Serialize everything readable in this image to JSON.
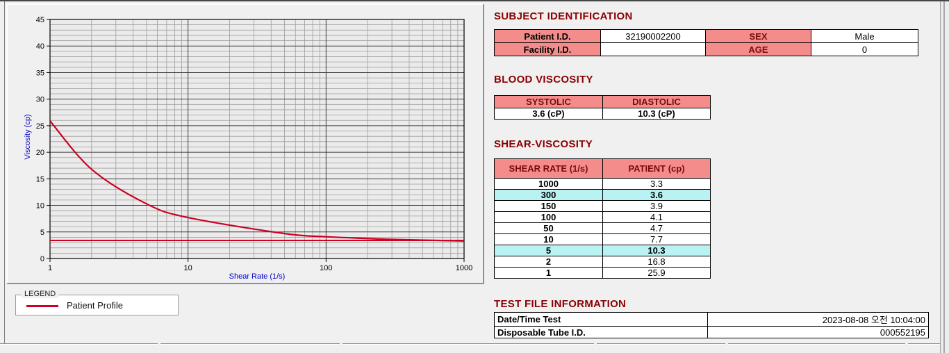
{
  "subject_identification": {
    "title": "SUBJECT IDENTIFICATION",
    "rows": [
      {
        "label1": "Patient I.D.",
        "value1": "32190002200",
        "label2": "SEX",
        "value2": "Male"
      },
      {
        "label1": "Facility I.D.",
        "value1": "",
        "label2": "AGE",
        "value2": "0"
      }
    ]
  },
  "blood_viscosity": {
    "title": "BLOOD VISCOSITY",
    "headers": [
      "SYSTOLIC",
      "DIASTOLIC"
    ],
    "values": [
      "3.6 (cP)",
      "10.3 (cP)"
    ]
  },
  "shear_viscosity": {
    "title": "SHEAR-VISCOSITY",
    "headers": [
      "SHEAR RATE (1/s)",
      "PATIENT (cp)"
    ],
    "rows": [
      {
        "rate": "1000",
        "value": "3.3",
        "highlight": false
      },
      {
        "rate": "300",
        "value": "3.6",
        "highlight": true
      },
      {
        "rate": "150",
        "value": "3.9",
        "highlight": false
      },
      {
        "rate": "100",
        "value": "4.1",
        "highlight": false
      },
      {
        "rate": "50",
        "value": "4.7",
        "highlight": false
      },
      {
        "rate": "10",
        "value": "7.7",
        "highlight": false
      },
      {
        "rate": "5",
        "value": "10.3",
        "highlight": true
      },
      {
        "rate": "2",
        "value": "16.8",
        "highlight": false
      },
      {
        "rate": "1",
        "value": "25.9",
        "highlight": false
      }
    ]
  },
  "test_file_information": {
    "title": "TEST FILE INFORMATION",
    "rows": [
      {
        "label": "Date/Time Test",
        "value": "2023-08-08  오전 10:04:00"
      },
      {
        "label": "Disposable Tube I.D.",
        "value": "000552195"
      }
    ]
  },
  "legend": {
    "box_label": "LEGEND",
    "series_label": "Patient Profile",
    "line_color": "#cc0022"
  },
  "colors": {
    "section_title": "#8b0000",
    "table_header_bg": "#f58c8c",
    "highlight_bg": "#b8f2f2",
    "curve": "#cc0022",
    "axis_title": "#0000cc",
    "grid_minor": "#9d9d9d",
    "grid_major": "#3c3c3c"
  },
  "chart_data": {
    "type": "line",
    "x_scale": "log",
    "x": [
      1,
      2,
      5,
      10,
      50,
      100,
      150,
      300,
      1000
    ],
    "series": [
      {
        "name": "Patient Profile",
        "values": [
          25.9,
          16.8,
          10.3,
          7.7,
          4.7,
          4.1,
          3.9,
          3.6,
          3.3
        ]
      }
    ],
    "baseline_value": 3.4,
    "title": "",
    "xlabel": "Shear Rate (1/s)",
    "ylabel": "Viscosity (cp)",
    "xlim": [
      1,
      1000
    ],
    "ylim": [
      0,
      45
    ],
    "x_ticks": [
      1,
      10,
      100,
      1000
    ],
    "y_ticks": [
      0,
      5,
      10,
      15,
      20,
      25,
      30,
      35,
      40,
      45
    ],
    "grid": "log minor grid on, unit minor horizontal grid on",
    "legend_position": "below-left frame"
  }
}
